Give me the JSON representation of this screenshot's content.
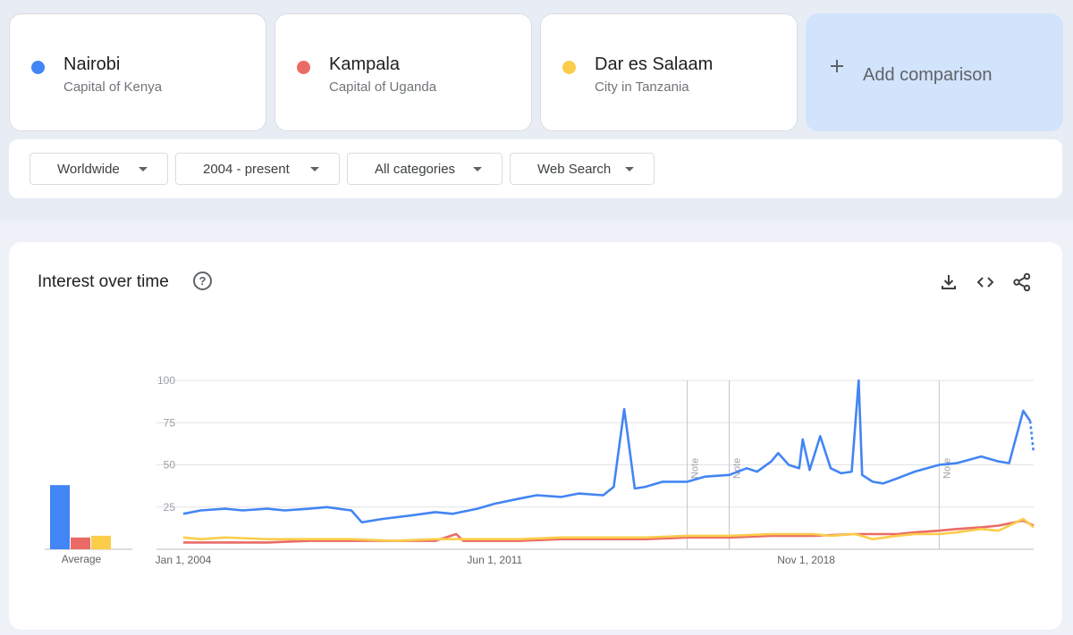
{
  "terms": [
    {
      "name": "Nairobi",
      "description": "Capital of Kenya",
      "color": "#4285f4"
    },
    {
      "name": "Kampala",
      "description": "Capital of Uganda",
      "color": "#ea6b66"
    },
    {
      "name": "Dar es Salaam",
      "description": "City in Tanzania",
      "color": "#fbcd4a"
    }
  ],
  "add_comparison": "Add comparison",
  "filters": {
    "region": "Worldwide",
    "time_range": "2004 - present",
    "category": "All categories",
    "search_type": "Web Search"
  },
  "panel": {
    "title": "Interest over time",
    "help_icon": "help-circle-icon",
    "tools": [
      "download-icon",
      "embed-code-icon",
      "share-icon"
    ]
  },
  "chart_data": {
    "type": "line",
    "x_start": "2004-01",
    "x_end": "2024-04",
    "x_tick_labels": [
      {
        "label": "Jan 1, 2004",
        "date": "2004-01"
      },
      {
        "label": "Jun 1, 2011",
        "date": "2011-06"
      },
      {
        "label": "Nov 1, 2018",
        "date": "2018-11"
      }
    ],
    "y_ticks": [
      25,
      50,
      75,
      100
    ],
    "ylim": [
      0,
      100
    ],
    "grid": true,
    "average_label": "Average",
    "averages": [
      {
        "series": "Nairobi",
        "value": 38
      },
      {
        "series": "Kampala",
        "value": 7
      },
      {
        "series": "Dar es Salaam",
        "value": 8
      }
    ],
    "annotations": [
      {
        "label": "Note",
        "date": "2016-01"
      },
      {
        "label": "Note",
        "date": "2017-01"
      },
      {
        "label": "Note",
        "date": "2022-01"
      }
    ],
    "series": [
      {
        "name": "Nairobi",
        "color": "#4285f4",
        "points": [
          [
            "2004-01",
            21
          ],
          [
            "2004-06",
            23
          ],
          [
            "2005-01",
            24
          ],
          [
            "2005-06",
            23
          ],
          [
            "2006-01",
            24
          ],
          [
            "2006-06",
            23
          ],
          [
            "2007-01",
            24
          ],
          [
            "2007-06",
            25
          ],
          [
            "2008-01",
            23
          ],
          [
            "2008-04",
            16
          ],
          [
            "2008-10",
            18
          ],
          [
            "2009-06",
            20
          ],
          [
            "2010-01",
            22
          ],
          [
            "2010-06",
            21
          ],
          [
            "2011-01",
            24
          ],
          [
            "2011-06",
            27
          ],
          [
            "2012-01",
            30
          ],
          [
            "2012-06",
            32
          ],
          [
            "2013-01",
            31
          ],
          [
            "2013-06",
            33
          ],
          [
            "2014-01",
            32
          ],
          [
            "2014-04",
            37
          ],
          [
            "2014-07",
            83
          ],
          [
            "2014-10",
            36
          ],
          [
            "2015-01",
            37
          ],
          [
            "2015-06",
            40
          ],
          [
            "2016-01",
            40
          ],
          [
            "2016-06",
            43
          ],
          [
            "2017-01",
            44
          ],
          [
            "2017-06",
            48
          ],
          [
            "2017-09",
            46
          ],
          [
            "2018-01",
            52
          ],
          [
            "2018-03",
            57
          ],
          [
            "2018-06",
            50
          ],
          [
            "2018-09",
            48
          ],
          [
            "2018-10",
            65
          ],
          [
            "2018-12",
            47
          ],
          [
            "2019-03",
            67
          ],
          [
            "2019-06",
            48
          ],
          [
            "2019-09",
            45
          ],
          [
            "2019-12",
            46
          ],
          [
            "2020-02",
            100
          ],
          [
            "2020-03",
            44
          ],
          [
            "2020-06",
            40
          ],
          [
            "2020-09",
            39
          ],
          [
            "2021-01",
            42
          ],
          [
            "2021-06",
            46
          ],
          [
            "2022-01",
            50
          ],
          [
            "2022-06",
            51
          ],
          [
            "2023-01",
            55
          ],
          [
            "2023-06",
            52
          ],
          [
            "2023-09",
            51
          ],
          [
            "2024-01",
            82
          ],
          [
            "2024-03",
            76
          ]
        ],
        "partial_points": [
          [
            "2024-03",
            76
          ],
          [
            "2024-04",
            57
          ]
        ]
      },
      {
        "name": "Kampala",
        "color": "#ea6b66",
        "points": [
          [
            "2004-01",
            4
          ],
          [
            "2005-01",
            4
          ],
          [
            "2006-01",
            4
          ],
          [
            "2007-01",
            5
          ],
          [
            "2008-01",
            5
          ],
          [
            "2009-01",
            5
          ],
          [
            "2010-01",
            5
          ],
          [
            "2010-07",
            9
          ],
          [
            "2010-09",
            5
          ],
          [
            "2011-01",
            5
          ],
          [
            "2012-01",
            5
          ],
          [
            "2013-01",
            6
          ],
          [
            "2014-01",
            6
          ],
          [
            "2015-01",
            6
          ],
          [
            "2016-01",
            7
          ],
          [
            "2017-01",
            7
          ],
          [
            "2018-01",
            8
          ],
          [
            "2019-01",
            8
          ],
          [
            "2020-01",
            9
          ],
          [
            "2021-01",
            9
          ],
          [
            "2021-06",
            10
          ],
          [
            "2022-01",
            11
          ],
          [
            "2022-06",
            12
          ],
          [
            "2023-01",
            13
          ],
          [
            "2023-06",
            14
          ],
          [
            "2024-01",
            17
          ],
          [
            "2024-04",
            14
          ]
        ]
      },
      {
        "name": "Dar es Salaam",
        "color": "#fbcd4a",
        "points": [
          [
            "2004-01",
            7
          ],
          [
            "2004-06",
            6
          ],
          [
            "2005-01",
            7
          ],
          [
            "2006-01",
            6
          ],
          [
            "2007-01",
            6
          ],
          [
            "2008-01",
            6
          ],
          [
            "2009-01",
            5
          ],
          [
            "2010-01",
            6
          ],
          [
            "2011-01",
            6
          ],
          [
            "2012-01",
            6
          ],
          [
            "2013-01",
            7
          ],
          [
            "2014-01",
            7
          ],
          [
            "2015-01",
            7
          ],
          [
            "2016-01",
            8
          ],
          [
            "2017-01",
            8
          ],
          [
            "2018-01",
            9
          ],
          [
            "2019-01",
            9
          ],
          [
            "2019-06",
            8
          ],
          [
            "2020-01",
            9
          ],
          [
            "2020-06",
            6
          ],
          [
            "2021-01",
            8
          ],
          [
            "2021-06",
            9
          ],
          [
            "2022-01",
            9
          ],
          [
            "2022-06",
            10
          ],
          [
            "2023-01",
            12
          ],
          [
            "2023-06",
            11
          ],
          [
            "2024-01",
            18
          ],
          [
            "2024-04",
            13
          ]
        ]
      }
    ]
  }
}
